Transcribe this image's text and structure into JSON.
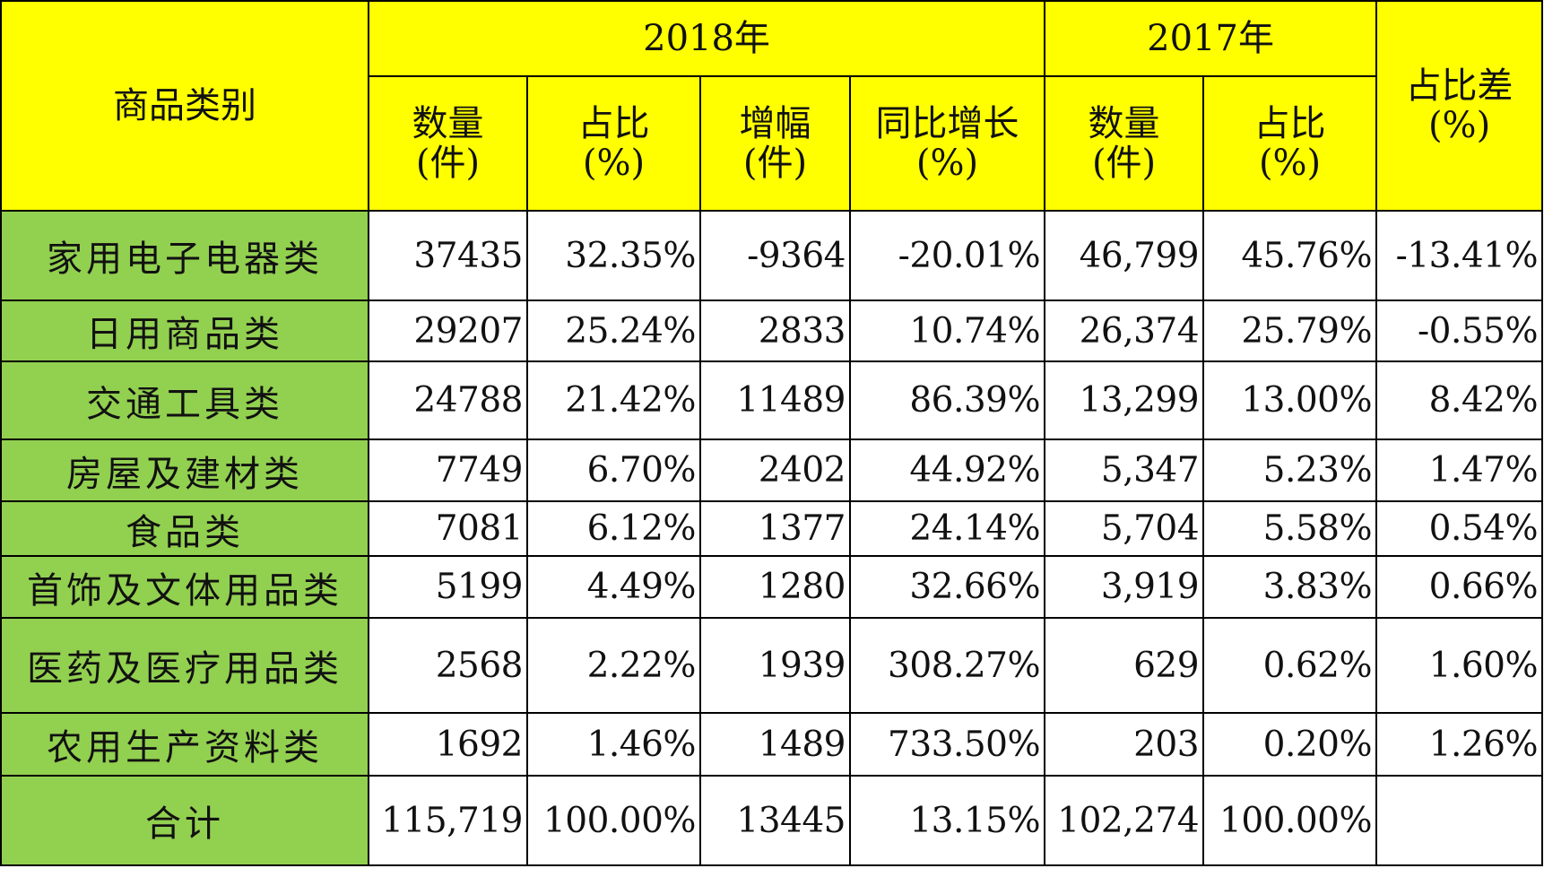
{
  "headers": {
    "category": "商品类别",
    "year_2018": "2018年",
    "year_2017": "2017年",
    "diff_line1": "占比差",
    "diff_line2": "(%)",
    "qty_line1": "数量",
    "qty_line2": "(件)",
    "share_line1": "占比",
    "share_line2": "(%)",
    "growth_line1": "增幅",
    "growth_line2": "(件)",
    "yoy_line1": "同比增长",
    "yoy_line2": "(%)"
  },
  "rows": [
    {
      "category": "家用电子电器类",
      "qty2018": "37435",
      "share2018": "32.35%",
      "growth": "-9364",
      "yoy": "-20.01%",
      "qty2017": "46,799",
      "share2017": "45.76%",
      "diff": "-13.41%"
    },
    {
      "category": "日用商品类",
      "qty2018": "29207",
      "share2018": "25.24%",
      "growth": "2833",
      "yoy": "10.74%",
      "qty2017": "26,374",
      "share2017": "25.79%",
      "diff": "-0.55%"
    },
    {
      "category": "交通工具类",
      "qty2018": "24788",
      "share2018": "21.42%",
      "growth": "11489",
      "yoy": "86.39%",
      "qty2017": "13,299",
      "share2017": "13.00%",
      "diff": "8.42%"
    },
    {
      "category": "房屋及建材类",
      "qty2018": "7749",
      "share2018": "6.70%",
      "growth": "2402",
      "yoy": "44.92%",
      "qty2017": "5,347",
      "share2017": "5.23%",
      "diff": "1.47%"
    },
    {
      "category": "食品类",
      "qty2018": "7081",
      "share2018": "6.12%",
      "growth": "1377",
      "yoy": "24.14%",
      "qty2017": "5,704",
      "share2017": "5.58%",
      "diff": "0.54%"
    },
    {
      "category": "首饰及文体用品类",
      "qty2018": "5199",
      "share2018": "4.49%",
      "growth": "1280",
      "yoy": "32.66%",
      "qty2017": "3,919",
      "share2017": "3.83%",
      "diff": "0.66%"
    },
    {
      "category": "医药及医疗用品类",
      "qty2018": "2568",
      "share2018": "2.22%",
      "growth": "1939",
      "yoy": "308.27%",
      "qty2017": "629",
      "share2017": "0.62%",
      "diff": "1.60%"
    },
    {
      "category": "农用生产资料类",
      "qty2018": "1692",
      "share2018": "1.46%",
      "growth": "1489",
      "yoy": "733.50%",
      "qty2017": "203",
      "share2017": "0.20%",
      "diff": "1.26%"
    },
    {
      "category": "合计",
      "qty2018": "115,719",
      "share2018": "100.00%",
      "growth": "13445",
      "yoy": "13.15%",
      "qty2017": "102,274",
      "share2017": "100.00%",
      "diff": ""
    }
  ],
  "colors": {
    "header_bg": "#ffff00",
    "category_bg": "#92d050",
    "cell_bg": "#ffffff",
    "border": "#000000"
  }
}
